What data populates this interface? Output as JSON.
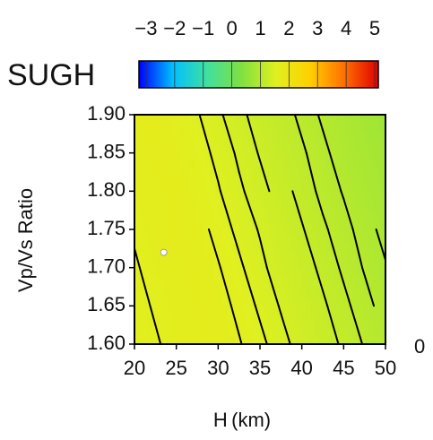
{
  "chart_data": {
    "type": "contour",
    "title": "SUGH",
    "xlabel": "H (km)",
    "ylabel": "Vp/Vs Ratio",
    "annotation": "0",
    "x": [
      20,
      22.5,
      25,
      27.5,
      30,
      32.5,
      35,
      37.5,
      40,
      42.5,
      45,
      47.5,
      50
    ],
    "y": [
      1.6,
      1.65,
      1.7,
      1.75,
      1.8,
      1.85,
      1.9
    ],
    "z": [
      [
        1.55,
        1.59,
        1.63,
        1.66,
        1.7,
        1.61,
        1.53,
        1.44,
        1.35,
        1.26,
        1.18,
        1.09,
        1.0
      ],
      [
        1.57,
        1.61,
        1.64,
        1.68,
        1.65,
        1.57,
        1.48,
        1.39,
        1.3,
        1.22,
        1.13,
        1.04,
        0.95
      ],
      [
        1.59,
        1.63,
        1.66,
        1.69,
        1.61,
        1.52,
        1.43,
        1.34,
        1.26,
        1.17,
        1.08,
        0.99,
        0.91
      ],
      [
        1.61,
        1.65,
        1.68,
        1.65,
        1.56,
        1.47,
        1.39,
        1.3,
        1.21,
        1.12,
        1.04,
        0.95,
        0.86
      ],
      [
        1.63,
        1.66,
        1.69,
        1.6,
        1.51,
        1.42,
        1.34,
        1.25,
        1.16,
        1.07,
        0.99,
        0.9,
        0.81
      ],
      [
        1.65,
        1.69,
        1.64,
        1.55,
        1.47,
        1.38,
        1.29,
        1.2,
        1.12,
        1.03,
        0.94,
        0.85,
        0.77
      ],
      [
        1.67,
        1.68,
        1.6,
        1.51,
        1.42,
        1.33,
        1.25,
        1.16,
        1.07,
        0.98,
        0.9,
        0.81,
        0.72
      ]
    ],
    "contour_levels": [
      0.9,
      1.0,
      1.1,
      1.2,
      1.3,
      1.4,
      1.5,
      1.6
    ],
    "contour_color": "#000000",
    "best": {
      "x": 23.5,
      "y": 1.72
    },
    "best_color": "#ffffff",
    "xlim": [
      20,
      50
    ],
    "xticks": [
      20,
      25,
      30,
      35,
      40,
      45,
      50
    ],
    "ylim": [
      1.6,
      1.9
    ],
    "yticks": [
      {
        "value": 1.6,
        "label": "1.60"
      },
      {
        "value": 1.65,
        "label": "1.65"
      },
      {
        "value": 1.7,
        "label": "1.70"
      },
      {
        "value": 1.75,
        "label": "1.75"
      },
      {
        "value": 1.8,
        "label": "1.80"
      },
      {
        "value": 1.85,
        "label": "1.85"
      },
      {
        "value": 1.9,
        "label": "1.90"
      }
    ],
    "clim": [
      -3.25,
      5.125
    ],
    "cticks": [
      {
        "value": -3,
        "label": "−3"
      },
      {
        "value": -2,
        "label": "−2"
      },
      {
        "value": -1,
        "label": "−1"
      },
      0,
      1,
      2,
      3,
      4,
      5
    ],
    "colormap": [
      "#0000ff",
      "#00c0ff",
      "#40e0a0",
      "#80e040",
      "#e0f020",
      "#ffd000",
      "#ff7000",
      "#e00000"
    ]
  }
}
